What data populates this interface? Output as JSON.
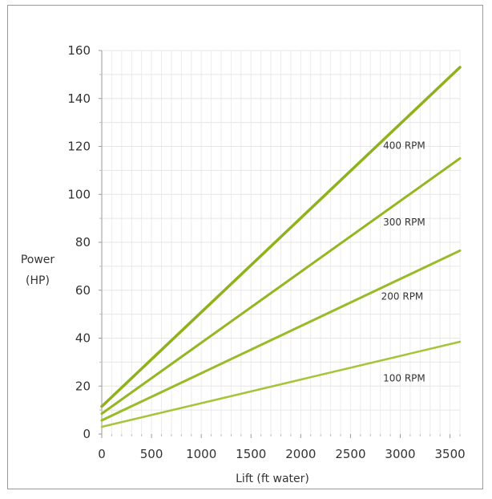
{
  "chart_data": {
    "type": "line",
    "title": "",
    "xlabel": "Lift (ft water)",
    "ylabel_lines": [
      "Power",
      "(HP)"
    ],
    "xlim": [
      0,
      3600
    ],
    "ylim": [
      0,
      160
    ],
    "x_ticks": [
      0,
      500,
      1000,
      1500,
      2000,
      2500,
      3000,
      3500
    ],
    "y_ticks": [
      0,
      20,
      40,
      60,
      80,
      100,
      120,
      140,
      160
    ],
    "grid": true,
    "x": [
      0,
      3600
    ],
    "series": [
      {
        "name": "400 RPM",
        "values": [
          11.5,
          153
        ],
        "color": "#8fb21c"
      },
      {
        "name": "300 RPM",
        "values": [
          8.5,
          115
        ],
        "color": "#93b622"
      },
      {
        "name": "200 RPM",
        "values": [
          5.7,
          76.5
        ],
        "color": "#99bb28"
      },
      {
        "name": "100 RPM",
        "values": [
          3,
          38.5
        ],
        "color": "#a4c43a"
      }
    ]
  }
}
